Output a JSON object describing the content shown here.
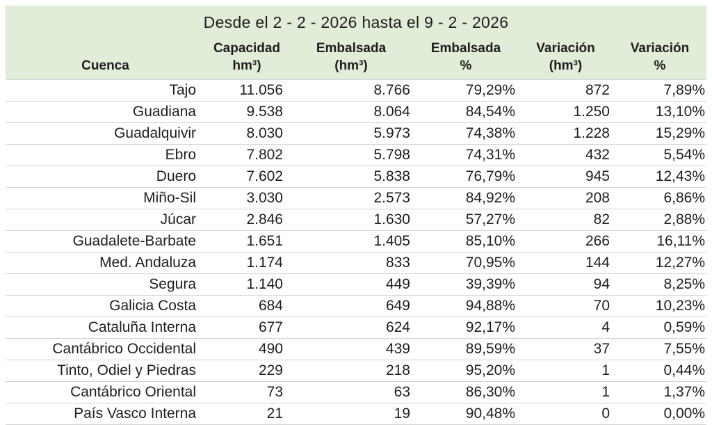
{
  "chart_data": {
    "type": "table",
    "title": "Desde el 2 - 2 - 2026 hasta el 9 - 2 - 2026",
    "columns": [
      "Cuenca",
      "Capacidad hm³)",
      "Embalsada (hm³)",
      "Embalsada %",
      "Variación (hm³)",
      "Variación %"
    ],
    "rows": [
      [
        "Tajo",
        "11.056",
        "8.766",
        "79,29%",
        "872",
        "7,89%"
      ],
      [
        "Guadiana",
        "9.538",
        "8.064",
        "84,54%",
        "1.250",
        "13,10%"
      ],
      [
        "Guadalquivir",
        "8.030",
        "5.973",
        "74,38%",
        "1.228",
        "15,29%"
      ],
      [
        "Ebro",
        "7.802",
        "5.798",
        "74,31%",
        "432",
        "5,54%"
      ],
      [
        "Duero",
        "7.602",
        "5.838",
        "76,79%",
        "945",
        "12,43%"
      ],
      [
        "Miño-Sil",
        "3.030",
        "2.573",
        "84,92%",
        "208",
        "6,86%"
      ],
      [
        "Júcar",
        "2.846",
        "1.630",
        "57,27%",
        "82",
        "2,88%"
      ],
      [
        "Guadalete-Barbate",
        "1.651",
        "1.405",
        "85,10%",
        "266",
        "16,11%"
      ],
      [
        "Med. Andaluza",
        "1.174",
        "833",
        "70,95%",
        "144",
        "12,27%"
      ],
      [
        "Segura",
        "1.140",
        "449",
        "39,39%",
        "94",
        "8,25%"
      ],
      [
        "Galicia Costa",
        "684",
        "649",
        "94,88%",
        "70",
        "10,23%"
      ],
      [
        "Cataluña Interna",
        "677",
        "624",
        "92,17%",
        "4",
        "0,59%"
      ],
      [
        "Cantábrico Occidental",
        "490",
        "439",
        "89,59%",
        "37",
        "7,55%"
      ],
      [
        "Tinto, Odiel y Piedras",
        "229",
        "218",
        "95,20%",
        "1",
        "0,44%"
      ],
      [
        "Cantábrico Oriental",
        "73",
        "63",
        "86,30%",
        "1",
        "1,37%"
      ],
      [
        "País Vasco Interna",
        "21",
        "19",
        "90,48%",
        "0",
        "0,00%"
      ]
    ]
  },
  "header": {
    "column_lines": [
      {
        "line1": "Cuenca",
        "line2": ""
      },
      {
        "line1": "Capacidad",
        "line2": "hm³)"
      },
      {
        "line1": "Embalsada",
        "line2": "(hm³)"
      },
      {
        "line1": "Embalsada",
        "line2": "%"
      },
      {
        "line1": "Variación",
        "line2": "(hm³)"
      },
      {
        "line1": "Variación",
        "line2": "%"
      }
    ]
  },
  "colors": {
    "header_bg": "#e1ecd9",
    "row_divider": "#d2d2d2",
    "text": "#1e1e1e"
  }
}
